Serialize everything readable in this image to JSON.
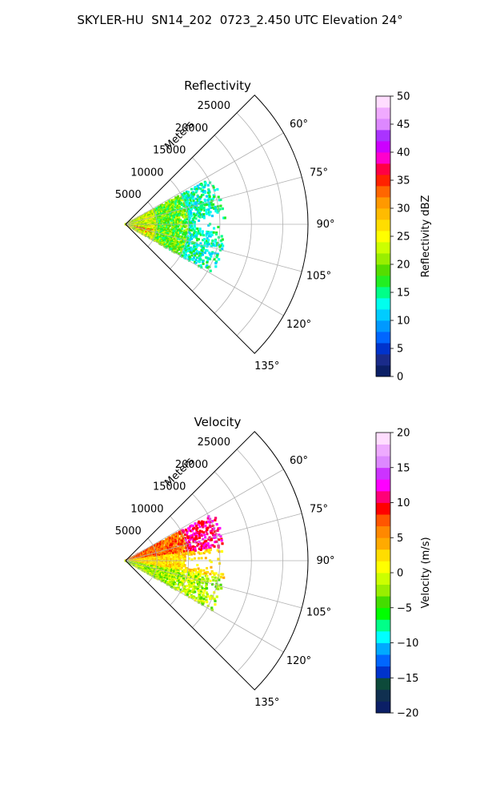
{
  "figure_title": "SKYLER-HU  SN14_202  0723_2.450 UTC Elevation 24°",
  "chart_data": [
    {
      "type": "heatmap",
      "title": "Reflectivity",
      "radial_label": "Meters",
      "radial_ticks": [
        5000,
        10000,
        15000,
        20000,
        25000
      ],
      "rlim": [
        0,
        29000
      ],
      "azimuth_range_deg": [
        45,
        135
      ],
      "azimuth_ticks": [
        "60°",
        "75°",
        "90°",
        "105°",
        "120°",
        "135°"
      ],
      "grid": true,
      "colorbar": {
        "label": "Reflectivity dBZ",
        "range": [
          0,
          50
        ],
        "ticks": [
          "0",
          "5",
          "10",
          "15",
          "20",
          "25",
          "30",
          "35",
          "40",
          "45",
          "50"
        ],
        "colors": [
          "#0b1f66",
          "#1a2b8a",
          "#0033cc",
          "#0066ff",
          "#0099ff",
          "#00ccff",
          "#00ffee",
          "#00ff88",
          "#22ee22",
          "#55dd00",
          "#99ee00",
          "#ccff00",
          "#ffff00",
          "#ffdd00",
          "#ffbb00",
          "#ff9900",
          "#ff6600",
          "#ff2200",
          "#ff0044",
          "#ff00cc",
          "#cc00ff",
          "#aa33ff",
          "#dd88ff",
          "#f0aaff",
          "#ffddff"
        ]
      },
      "echo_regions": [
        {
          "az_start": 64,
          "az_end": 91,
          "r_min": 0,
          "r_max": 16000,
          "level": "10–25 dBZ"
        },
        {
          "az_start": 93,
          "az_end": 118,
          "r_min": 0,
          "r_max": 16000,
          "level": "10–30 dBZ"
        },
        {
          "az_start": 103,
          "az_end": 110,
          "r_min": 1500,
          "r_max": 4500,
          "level": "35 dBZ"
        }
      ]
    },
    {
      "type": "heatmap",
      "title": "Velocity",
      "radial_label": "Meters",
      "radial_ticks": [
        5000,
        10000,
        15000,
        20000,
        25000
      ],
      "rlim": [
        0,
        29000
      ],
      "azimuth_range_deg": [
        45,
        135
      ],
      "azimuth_ticks": [
        "60°",
        "75°",
        "90°",
        "105°",
        "120°",
        "135°"
      ],
      "grid": true,
      "colorbar": {
        "label": "Velocity (m/s)",
        "range": [
          -20,
          20
        ],
        "ticks": [
          "−20",
          "−15",
          "−10",
          "−5",
          "0",
          "5",
          "10",
          "15",
          "20"
        ],
        "colors": [
          "#0b1f66",
          "#103050",
          "#0d4a3a",
          "#0033cc",
          "#0066ff",
          "#00aaff",
          "#00ffff",
          "#00ff88",
          "#00ff00",
          "#44dd00",
          "#99ee00",
          "#ccff00",
          "#ffff00",
          "#ffdd00",
          "#ffaa00",
          "#ff8800",
          "#ff5500",
          "#ff0000",
          "#ff0077",
          "#ff00ff",
          "#cc33ff",
          "#dd88ff",
          "#eeaaff",
          "#ffddff"
        ]
      },
      "echo_regions": [
        {
          "az_start": 64,
          "az_end": 82,
          "r_min": 0,
          "r_max": 15000,
          "level": "3–12 m/s"
        },
        {
          "az_start": 82,
          "az_end": 100,
          "r_min": 0,
          "r_max": 13000,
          "level": "0–3 m/s"
        },
        {
          "az_start": 100,
          "az_end": 118,
          "r_min": 0,
          "r_max": 15000,
          "level": "−5–3 m/s"
        }
      ]
    }
  ]
}
